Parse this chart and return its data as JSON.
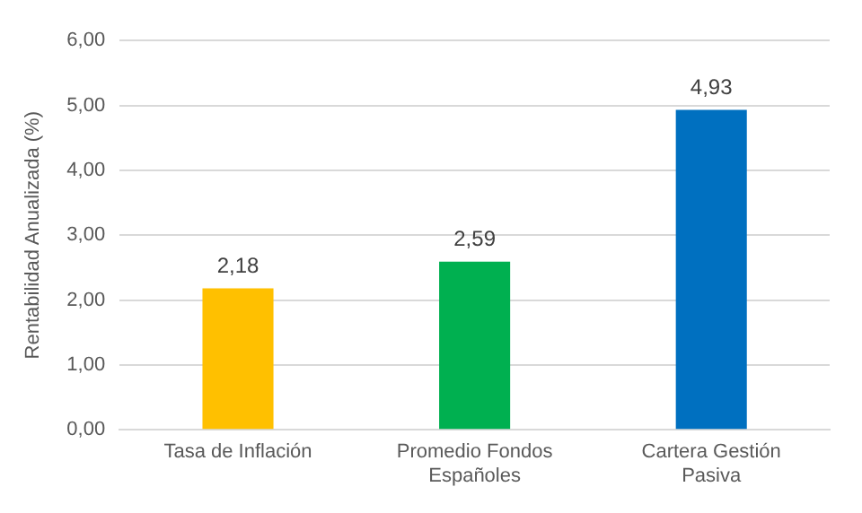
{
  "chart_data": {
    "type": "bar",
    "ylabel": "Rentabilidad Anualizada (%)",
    "categories": [
      "Tasa de Inflación",
      "Promedio Fondos Españoles",
      "Cartera Gestión Pasiva"
    ],
    "values": [
      2.18,
      2.59,
      4.93
    ],
    "colors": [
      "#ffc000",
      "#00b050",
      "#0070c0"
    ],
    "value_labels": [
      "2,18",
      "2,59",
      "4,93"
    ],
    "ylim": [
      0,
      6
    ],
    "yticks": [
      {
        "value": 0,
        "label": "0,00"
      },
      {
        "value": 1,
        "label": "1,00"
      },
      {
        "value": 2,
        "label": "2,00"
      },
      {
        "value": 3,
        "label": "3,00"
      },
      {
        "value": 4,
        "label": "4,00"
      },
      {
        "value": 5,
        "label": "5,00"
      },
      {
        "value": 6,
        "label": "6,00"
      }
    ],
    "grid": "y",
    "legend": false
  }
}
